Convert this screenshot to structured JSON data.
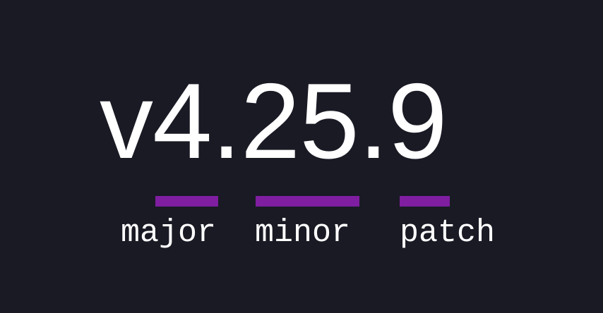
{
  "version": "v4.25.9",
  "parts": [
    {
      "label": "major"
    },
    {
      "label": "minor"
    },
    {
      "label": "patch"
    }
  ],
  "colors": {
    "background": "#191a24",
    "accent": "#7f1ea0",
    "text": "#ffffff"
  }
}
